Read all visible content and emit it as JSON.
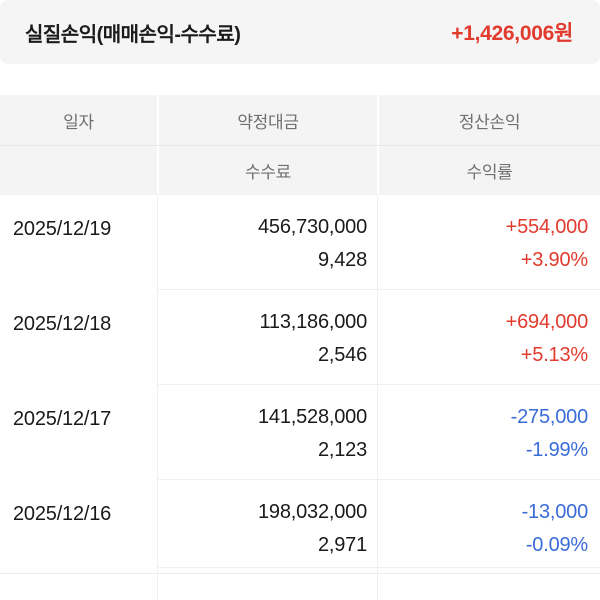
{
  "summary": {
    "label": "실질손익(매매손익-수수료)",
    "value": "+1,426,006원",
    "value_color": "#e23b2e"
  },
  "table": {
    "header": {
      "date": "일자",
      "contract_amount": "약정대금",
      "settlement_pnl": "정산손익",
      "fee": "수수료",
      "return_rate": "수익률"
    },
    "rows": [
      {
        "date": "2025/12/19",
        "amount": "456,730,000",
        "fee": "9,428",
        "pnl": "+554,000",
        "return": "+3.90%",
        "direction": "profit",
        "color": "#e23b2e"
      },
      {
        "date": "2025/12/18",
        "amount": "113,186,000",
        "fee": "2,546",
        "pnl": "+694,000",
        "return": "+5.13%",
        "direction": "profit",
        "color": "#e23b2e"
      },
      {
        "date": "2025/12/17",
        "amount": "141,528,000",
        "fee": "2,123",
        "pnl": "-275,000",
        "return": "-1.99%",
        "direction": "loss",
        "color": "#3a6cd9"
      },
      {
        "date": "2025/12/16",
        "amount": "198,032,000",
        "fee": "2,971",
        "pnl": "-13,000",
        "return": "-0.09%",
        "direction": "loss",
        "color": "#3a6cd9"
      }
    ]
  },
  "colors": {
    "profit": "#e23b2e",
    "loss": "#3a6cd9",
    "band_bg": "#f5f5f6",
    "header_bg": "#f4f4f5",
    "text": "#1a1a1a",
    "header_text": "#707070"
  }
}
